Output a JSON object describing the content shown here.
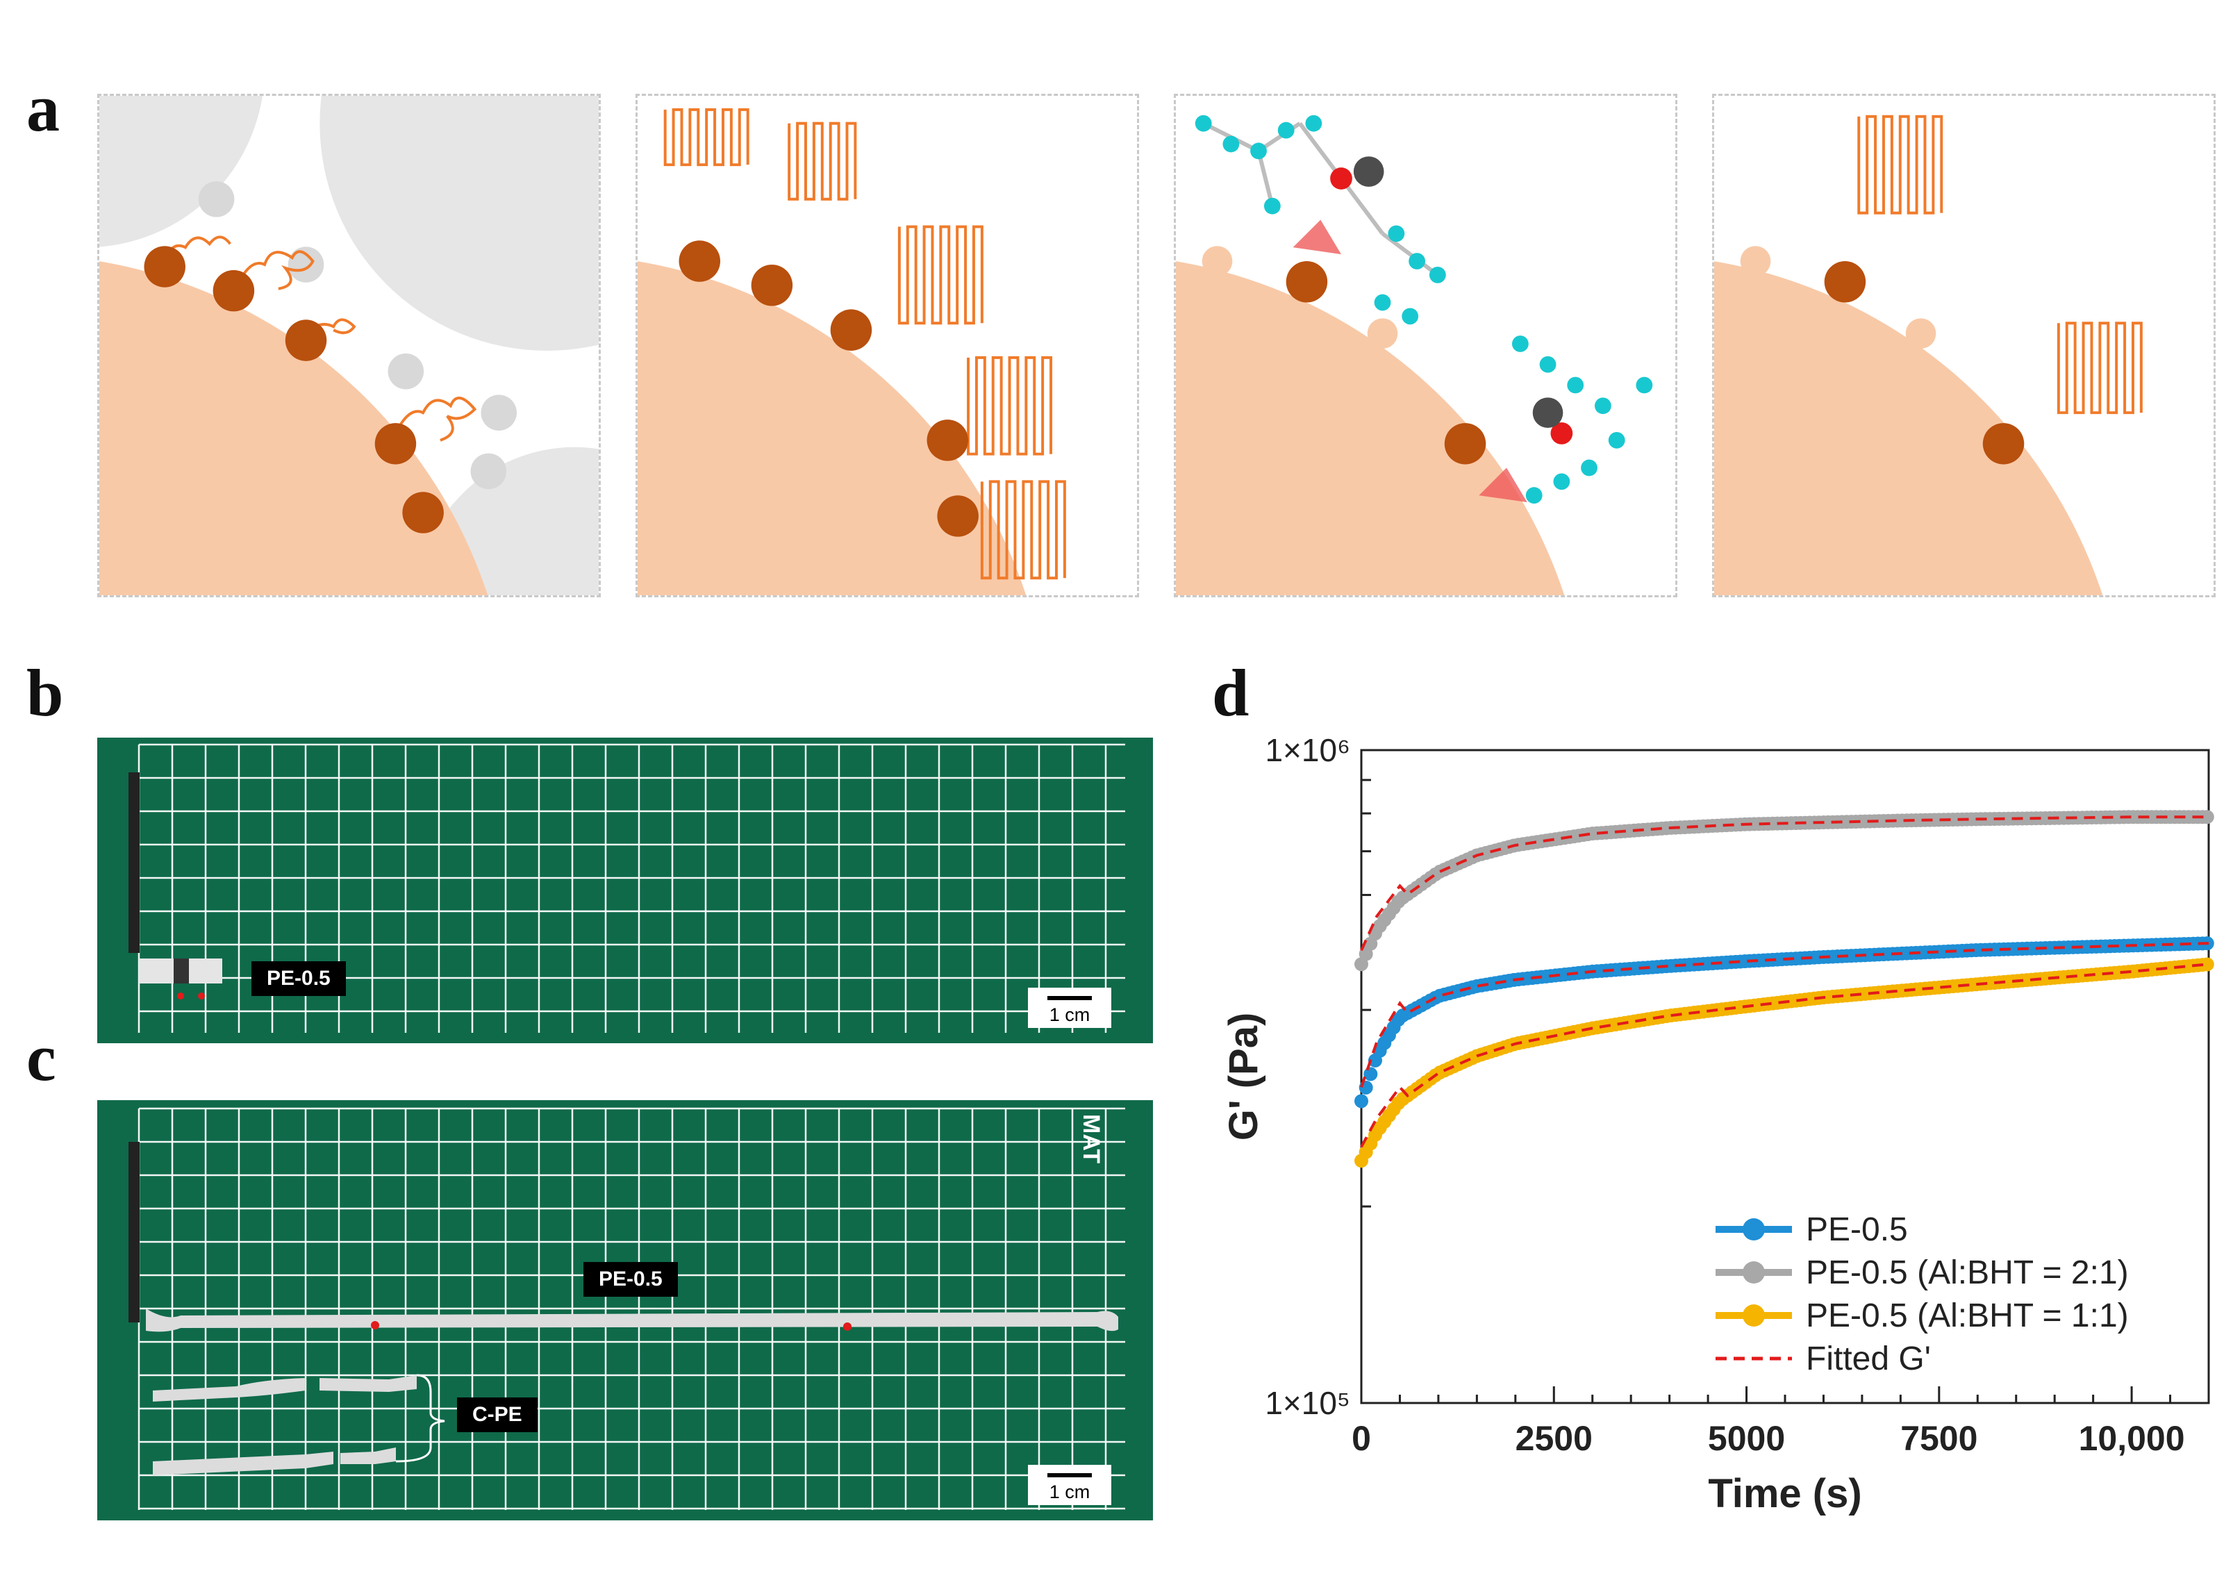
{
  "panels": {
    "a": "a",
    "b": "b",
    "c": "c",
    "d": "d"
  },
  "photo_b": {
    "sample_label": "PE-0.5",
    "scale_label": "1 cm"
  },
  "photo_c": {
    "stretched_label": "PE-0.5",
    "broken_label": "C-PE",
    "scale_label": "1 cm",
    "mat_text": "MAT"
  },
  "colors": {
    "pe": "#1f8fd6",
    "al_2_1": "#a8a8a8",
    "al_1_1": "#f4b400",
    "fit": "#e21b1b",
    "particle": "#f8c9a7",
    "chain": "#f07b2a",
    "atom_c": "#18c8d0"
  },
  "chart_data": {
    "type": "scatter",
    "title": "",
    "xlabel": "Time (s)",
    "ylabel": "G' (Pa)",
    "xlim": [
      0,
      11000
    ],
    "ylim": [
      100000,
      1000000
    ],
    "yscale": "log",
    "x_ticks": [
      0,
      2500,
      5000,
      7500,
      10000
    ],
    "x_tick_labels": [
      "0",
      "2500",
      "5000",
      "7500",
      "10,000"
    ],
    "y_tick_labels": [
      "1×10⁵",
      "1×10⁶"
    ],
    "legend_position": "bottom-right",
    "series": [
      {
        "name": "PE-0.5",
        "x": [
          0,
          200,
          500,
          1000,
          1500,
          2000,
          3000,
          4000,
          5000,
          6000,
          7000,
          8000,
          9000,
          10000,
          11000
        ],
        "y": [
          290000,
          340000,
          390000,
          420000,
          435000,
          445000,
          458000,
          467000,
          475000,
          482000,
          488000,
          494000,
          498000,
          502000,
          506000
        ]
      },
      {
        "name": "PE-0.5 (Al:BHT = 2:1)",
        "x": [
          0,
          200,
          500,
          1000,
          1500,
          2000,
          3000,
          4000,
          5000,
          6000,
          7000,
          8000,
          9000,
          10000,
          11000
        ],
        "y": [
          470000,
          530000,
          590000,
          650000,
          690000,
          715000,
          745000,
          760000,
          770000,
          775000,
          780000,
          784000,
          787000,
          790000,
          790000
        ]
      },
      {
        "name": "PE-0.5 (Al:BHT = 1:1)",
        "x": [
          0,
          200,
          500,
          1000,
          1500,
          2000,
          3000,
          4000,
          5000,
          6000,
          7000,
          8000,
          9000,
          10000,
          11000
        ],
        "y": [
          235000,
          260000,
          290000,
          320000,
          340000,
          355000,
          375000,
          392000,
          405000,
          418000,
          428000,
          438000,
          448000,
          458000,
          470000
        ]
      },
      {
        "name": "Fitted G'",
        "x": [
          0,
          200,
          500,
          1000,
          1500,
          2000,
          3000,
          4000,
          5000,
          6000,
          7000,
          8000,
          9000,
          10000,
          11000
        ],
        "y": [
          310000,
          335000,
          380000,
          415000,
          432000,
          443000,
          457000,
          466000,
          474000,
          481000,
          487000,
          493000,
          497000,
          501000,
          505000
        ]
      }
    ],
    "legend": [
      "PE-0.5",
      "PE-0.5 (Al:BHT = 2:1)",
      "PE-0.5 (Al:BHT = 1:1)",
      "Fitted G'"
    ]
  }
}
